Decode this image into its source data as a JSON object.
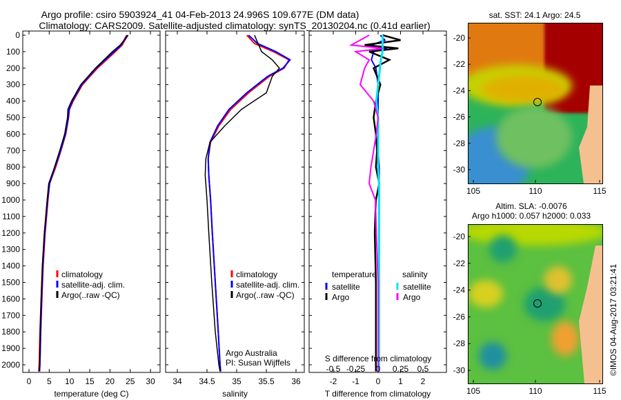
{
  "title_line1": "Argo profile: csiro 5903924_41 04-Feb-2013 24.996S 109.677E (DM data)",
  "title_line2": "Climatology: CARS2009. Satellite-adjusted climatology: synTS_20130204.nc (0.41d earlier)",
  "credit": "Argo Australia",
  "pi": "PI: Susan Wijffels",
  "stamp": "©IMOS 04-Aug-2017 03:21:41",
  "colors": {
    "climatology": "#ff0000",
    "satellite": "#0000ff",
    "argo": "#000000",
    "sal_satellite": "#00e5ee",
    "sal_argo": "#ff00ff"
  },
  "chart_data": [
    {
      "type": "line",
      "title": "",
      "xlabel": "temperature (deg C)",
      "ylabel": "",
      "xlim": [
        -1.5,
        32
      ],
      "ylim": [
        2045,
        0
      ],
      "xticks": [
        "0",
        "5",
        "10",
        "15",
        "20",
        "25",
        "30"
      ],
      "yticks": [
        "0",
        "100",
        "200",
        "300",
        "400",
        "500",
        "600",
        "700",
        "800",
        "900",
        "1000",
        "1100",
        "1200",
        "1300",
        "1400",
        "1500",
        "1600",
        "1700",
        "1800",
        "1900",
        "2000"
      ],
      "legend": [
        "climatology",
        "satellite-adj. clim.",
        "Argo(..raw -QC)"
      ],
      "depth": [
        0,
        60,
        100,
        200,
        300,
        400,
        450,
        500,
        600,
        700,
        800,
        900,
        1000,
        1200,
        1400,
        1600,
        1800,
        2000,
        2040
      ],
      "series": [
        {
          "name": "climatology",
          "values": [
            24.3,
            22.9,
            21.2,
            16.8,
            13.1,
            10.8,
            9.9,
            9.7,
            9.0,
            7.8,
            6.5,
            5.0,
            4.6,
            3.9,
            3.4,
            3.1,
            2.8,
            2.6,
            2.5
          ]
        },
        {
          "name": "satellite-adj. clim.",
          "values": [
            24.2,
            22.8,
            21.0,
            16.6,
            13.0,
            10.7,
            9.9,
            9.7,
            9.0,
            7.8,
            6.4,
            5.1,
            4.6,
            3.9,
            3.4,
            3.1,
            2.9,
            2.7,
            2.6
          ]
        },
        {
          "name": "Argo(..raw -QC)",
          "values": [
            24.5,
            22.5,
            20.6,
            16.4,
            12.8,
            10.5,
            9.6,
            9.5,
            8.8,
            7.6,
            6.3,
            4.9,
            4.5,
            3.8,
            3.3,
            3.0,
            2.8,
            2.6,
            2.5
          ]
        }
      ]
    },
    {
      "type": "line",
      "xlabel": "salinity",
      "xlim": [
        33.8,
        36.15
      ],
      "ylim": [
        2045,
        0
      ],
      "xticks": [
        "34",
        "34.5",
        "35",
        "35.5",
        "36"
      ],
      "legend": [
        "climatology",
        "satellite-adj. clim.",
        "Argo(..raw -QC)"
      ],
      "depth": [
        0,
        50,
        100,
        150,
        200,
        250,
        350,
        450,
        550,
        650,
        750,
        850,
        1000,
        1200,
        1500,
        1800,
        2000,
        2040
      ],
      "series": [
        {
          "name": "climatology",
          "values": [
            35.17,
            35.3,
            35.62,
            35.88,
            35.8,
            35.55,
            35.2,
            34.9,
            34.7,
            34.56,
            34.52,
            34.53,
            34.56,
            34.59,
            34.64,
            34.69,
            34.72,
            34.73
          ]
        },
        {
          "name": "satellite-adj. clim.",
          "values": [
            35.2,
            35.35,
            35.66,
            35.9,
            35.78,
            35.52,
            35.17,
            34.87,
            34.68,
            34.55,
            34.52,
            34.53,
            34.56,
            34.59,
            34.64,
            34.69,
            34.72,
            34.73
          ]
        },
        {
          "name": "Argo(..raw -QC)",
          "values": [
            35.3,
            35.36,
            35.42,
            35.6,
            35.72,
            35.6,
            35.5,
            35.08,
            34.8,
            34.55,
            34.48,
            34.47,
            34.5,
            34.53,
            34.58,
            34.64,
            34.7,
            34.72
          ]
        }
      ]
    },
    {
      "type": "line",
      "xlabel": "T difference from climatology",
      "xlabel2": "S difference from climatology",
      "xlim": [
        -3.1,
        3.1
      ],
      "ylim": [
        2045,
        0
      ],
      "xticks": [
        "-2",
        "-1",
        "0",
        "1",
        "2"
      ],
      "xticks2": [
        "-0.5",
        "-0.25",
        "0",
        "0.25",
        "0.5"
      ],
      "legend_temperature_title": "temperature",
      "legend_salinity_title": "salinity",
      "legend": [
        "satellite",
        "Argo",
        "satellite",
        "Argo"
      ],
      "depth": [
        0,
        30,
        60,
        80,
        100,
        150,
        200,
        300,
        400,
        500,
        600,
        700,
        800,
        900,
        1000,
        1200,
        1500,
        1800,
        2000,
        2040
      ],
      "series": [
        {
          "name": "T satellite",
          "values": [
            0.1,
            0.3,
            -0.3,
            0.4,
            -0.2,
            -0.3,
            -0.1,
            0,
            0,
            0,
            0,
            0,
            0.05,
            0.05,
            0.05,
            0.05,
            0.05,
            0.05,
            0.05,
            0.05
          ]
        },
        {
          "name": "T Argo",
          "values": [
            0.2,
            1.0,
            -0.6,
            0.9,
            -0.4,
            0.5,
            -0.2,
            0.1,
            -0.1,
            -0.2,
            -0.1,
            -0.05,
            -0.1,
            0.05,
            -0.1,
            -0.15,
            -0.1,
            -0.1,
            -0.1,
            -0.1
          ]
        },
        {
          "name": "S satellite",
          "values": [
            0.05,
            0.05,
            0.05,
            0.05,
            0.05,
            0.03,
            0.02,
            0.0,
            -0.02,
            0,
            0,
            0,
            0,
            0.01,
            0.01,
            0.01,
            0.01,
            0.01,
            0.01,
            0.01
          ]
        },
        {
          "name": "S Argo",
          "values": [
            -0.1,
            -0.2,
            -0.3,
            0.05,
            -0.25,
            -0.1,
            -0.15,
            -0.2,
            -0.05,
            0,
            -0.02,
            -0.05,
            -0.08,
            -0.1,
            -0.03,
            -0.02,
            0,
            0,
            0,
            0
          ]
        }
      ]
    },
    {
      "type": "heatmap",
      "title": "sat. SST: 24.1 Argo: 24.5",
      "xticks": [
        "105",
        "110",
        "115"
      ],
      "yticks": [
        "-20",
        "-22",
        "-24",
        "-26",
        "-28",
        "-30"
      ],
      "argo_lon": 109.677,
      "argo_lat": -24.996
    },
    {
      "type": "heatmap",
      "title": "Altim. SLA: -0.0076",
      "title2": "Argo h1000: 0.057 h2000: 0.033",
      "xticks": [
        "105",
        "110",
        "115"
      ],
      "yticks": [
        "-20",
        "-22",
        "-24",
        "-26",
        "-28",
        "-30"
      ],
      "argo_lon": 109.677,
      "argo_lat": -24.996
    }
  ]
}
